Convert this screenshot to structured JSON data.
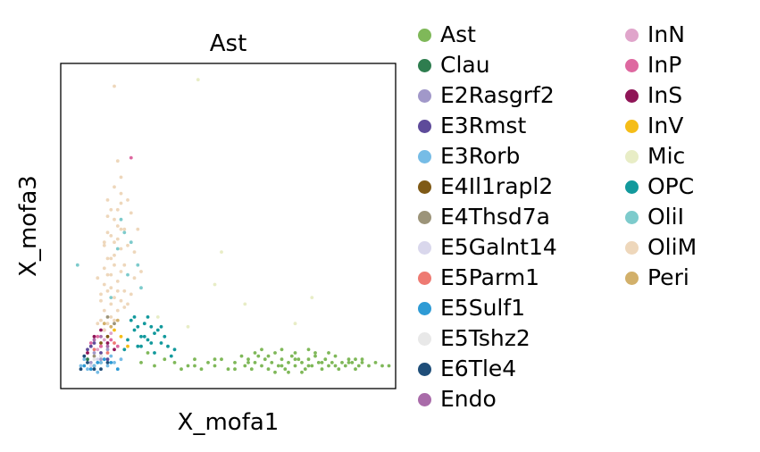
{
  "chart_data": {
    "type": "scatter",
    "title": "Ast",
    "xlabel": "X_mofa1",
    "ylabel": "X_mofa3",
    "xticks": false,
    "yticks": false,
    "grid": false,
    "legend_placement": "right",
    "xlim": [
      0,
      100
    ],
    "ylim": [
      0,
      100
    ],
    "series": [
      {
        "name": "Ast",
        "color": "#7fb859",
        "values": [
          [
            34,
            8
          ],
          [
            36,
            6
          ],
          [
            38,
            7
          ],
          [
            40,
            9
          ],
          [
            42,
            6
          ],
          [
            44,
            8
          ],
          [
            46,
            7
          ],
          [
            48,
            9
          ],
          [
            50,
            6
          ],
          [
            52,
            8
          ],
          [
            54,
            10
          ],
          [
            55,
            7
          ],
          [
            56,
            9
          ],
          [
            57,
            6
          ],
          [
            58,
            8
          ],
          [
            59,
            10
          ],
          [
            60,
            7
          ],
          [
            61,
            9
          ],
          [
            62,
            6
          ],
          [
            63,
            8
          ],
          [
            64,
            11
          ],
          [
            65,
            7
          ],
          [
            66,
            9
          ],
          [
            67,
            6
          ],
          [
            68,
            8
          ],
          [
            69,
            10
          ],
          [
            70,
            7
          ],
          [
            71,
            9
          ],
          [
            72,
            8
          ],
          [
            73,
            6
          ],
          [
            74,
            9
          ],
          [
            75,
            7
          ],
          [
            76,
            10
          ],
          [
            77,
            8
          ],
          [
            78,
            6
          ],
          [
            79,
            9
          ],
          [
            80,
            7
          ],
          [
            81,
            8
          ],
          [
            82,
            10
          ],
          [
            83,
            6
          ],
          [
            84,
            8
          ],
          [
            85,
            7
          ],
          [
            86,
            9
          ],
          [
            87,
            8
          ],
          [
            88,
            6
          ],
          [
            89,
            7
          ],
          [
            90,
            8
          ],
          [
            92,
            7
          ],
          [
            94,
            8
          ],
          [
            96,
            7
          ],
          [
            98,
            7
          ],
          [
            58,
            11
          ],
          [
            62,
            10
          ],
          [
            66,
            12
          ],
          [
            70,
            11
          ],
          [
            74,
            12
          ],
          [
            64,
            5
          ],
          [
            68,
            5
          ],
          [
            72,
            5
          ],
          [
            76,
            11
          ],
          [
            80,
            11
          ],
          [
            60,
            12
          ],
          [
            66,
            7
          ],
          [
            70,
            9
          ],
          [
            74,
            7
          ],
          [
            78,
            8
          ],
          [
            82,
            7
          ],
          [
            86,
            8
          ],
          [
            88,
            9
          ],
          [
            90,
            9
          ],
          [
            56,
            8
          ],
          [
            52,
            6
          ],
          [
            46,
            9
          ],
          [
            40,
            7
          ],
          [
            24,
            8
          ],
          [
            28,
            7
          ],
          [
            31,
            9
          ],
          [
            26,
            11
          ]
        ]
      },
      {
        "name": "Clau",
        "color": "#2e7d4f",
        "values": [
          [
            8,
            9
          ],
          [
            10,
            7
          ],
          [
            12,
            8
          ]
        ]
      },
      {
        "name": "E2Rasgrf2",
        "color": "#a198c9",
        "values": [
          [
            10,
            11
          ],
          [
            12,
            9
          ],
          [
            14,
            12
          ],
          [
            9,
            8
          ]
        ]
      },
      {
        "name": "E3Rmst",
        "color": "#5e4b9a",
        "values": [
          [
            8,
            12
          ],
          [
            10,
            14
          ],
          [
            12,
            11
          ],
          [
            14,
            9
          ],
          [
            9,
            13
          ]
        ]
      },
      {
        "name": "E3Rorb",
        "color": "#76bce6",
        "values": [
          [
            6,
            7
          ],
          [
            8,
            6
          ],
          [
            10,
            7
          ],
          [
            12,
            8
          ],
          [
            14,
            7
          ],
          [
            16,
            8
          ],
          [
            18,
            9
          ],
          [
            11,
            5
          ],
          [
            7,
            9
          ],
          [
            15,
            10
          ]
        ]
      },
      {
        "name": "E4Il1rapl2",
        "color": "#7f5a16",
        "values": [
          [
            12,
            14
          ],
          [
            14,
            16
          ]
        ]
      },
      {
        "name": "E4Thsd7a",
        "color": "#9c9479",
        "values": [
          [
            10,
            10
          ],
          [
            14,
            22
          ],
          [
            16,
            20
          ],
          [
            12,
            10
          ]
        ]
      },
      {
        "name": "E5Galnt14",
        "color": "#d9d7ec",
        "values": [
          [
            9,
            7
          ],
          [
            11,
            9
          ]
        ]
      },
      {
        "name": "E5Parm1",
        "color": "#ee7a72",
        "values": [
          [
            12,
            13
          ],
          [
            14,
            11
          ],
          [
            10,
            12
          ],
          [
            16,
            14
          ]
        ]
      },
      {
        "name": "E5Sulf1",
        "color": "#2e9bd5",
        "values": [
          [
            7,
            7
          ],
          [
            9,
            6
          ],
          [
            11,
            8
          ],
          [
            13,
            9
          ],
          [
            15,
            8
          ],
          [
            17,
            6
          ]
        ]
      },
      {
        "name": "E5Tshz2",
        "color": "#e8e8e8",
        "values": [
          [
            10,
            9
          ],
          [
            12,
            10
          ]
        ]
      },
      {
        "name": "E6Tle4",
        "color": "#1f4e79",
        "values": [
          [
            6,
            6
          ],
          [
            8,
            8
          ],
          [
            10,
            6
          ],
          [
            12,
            6
          ],
          [
            14,
            8
          ],
          [
            7,
            10
          ]
        ]
      },
      {
        "name": "Endo",
        "color": "#a96ba9",
        "values": [
          [
            10,
            15
          ],
          [
            12,
            16
          ],
          [
            14,
            13
          ]
        ]
      },
      {
        "name": "InN",
        "color": "#e0a5cb",
        "values": [
          [
            11,
            12
          ],
          [
            13,
            15
          ],
          [
            15,
            17
          ]
        ]
      },
      {
        "name": "InP",
        "color": "#de68a0",
        "values": [
          [
            9,
            14
          ],
          [
            11,
            16
          ],
          [
            13,
            18
          ],
          [
            15,
            15
          ],
          [
            17,
            13
          ],
          [
            12,
            13
          ],
          [
            21,
            71
          ]
        ]
      },
      {
        "name": "InS",
        "color": "#8f1557",
        "values": [
          [
            10,
            16
          ],
          [
            12,
            18
          ],
          [
            14,
            14
          ],
          [
            16,
            12
          ],
          [
            8,
            11
          ]
        ]
      },
      {
        "name": "InV",
        "color": "#f5bd18",
        "values": [
          [
            16,
            18
          ],
          [
            18,
            16
          ],
          [
            20,
            13
          ]
        ]
      },
      {
        "name": "Mic",
        "color": "#e8edc6",
        "values": [
          [
            41,
            95
          ],
          [
            55,
            26
          ],
          [
            70,
            20
          ],
          [
            75,
            28
          ],
          [
            46,
            32
          ],
          [
            38,
            19
          ],
          [
            29,
            22
          ],
          [
            48,
            42
          ]
        ]
      },
      {
        "name": "OPC",
        "color": "#12999c",
        "values": [
          [
            22,
            18
          ],
          [
            24,
            16
          ],
          [
            26,
            15
          ],
          [
            28,
            17
          ],
          [
            30,
            14
          ],
          [
            25,
            20
          ],
          [
            27,
            19
          ],
          [
            29,
            18
          ],
          [
            31,
            16
          ],
          [
            20,
            15
          ],
          [
            23,
            13
          ],
          [
            32,
            13
          ],
          [
            22,
            22
          ],
          [
            24,
            13
          ],
          [
            33,
            10
          ],
          [
            26,
            22
          ],
          [
            19,
            12
          ],
          [
            30,
            19
          ],
          [
            21,
            21
          ],
          [
            28,
            11
          ],
          [
            34,
            12
          ],
          [
            25,
            16
          ],
          [
            27,
            14
          ],
          [
            23,
            19
          ]
        ]
      },
      {
        "name": "OliI",
        "color": "#7dcbcc",
        "values": [
          [
            5,
            38
          ],
          [
            17,
            43
          ],
          [
            19,
            48
          ],
          [
            21,
            45
          ],
          [
            23,
            38
          ],
          [
            18,
            52
          ],
          [
            20,
            35
          ],
          [
            24,
            31
          ],
          [
            15,
            28
          ]
        ]
      },
      {
        "name": "OliM",
        "color": "#eed7bb",
        "values": [
          [
            16,
            93
          ],
          [
            17,
            70
          ],
          [
            18,
            65
          ],
          [
            16,
            62
          ],
          [
            20,
            58
          ],
          [
            15,
            55
          ],
          [
            14,
            53
          ],
          [
            17,
            50
          ],
          [
            19,
            49
          ],
          [
            15,
            47
          ],
          [
            16,
            45
          ],
          [
            18,
            43
          ],
          [
            13,
            44
          ],
          [
            14,
            40
          ],
          [
            16,
            38
          ],
          [
            18,
            36
          ],
          [
            15,
            35
          ],
          [
            17,
            33
          ],
          [
            13,
            32
          ],
          [
            14,
            30
          ],
          [
            16,
            28
          ],
          [
            18,
            27
          ],
          [
            15,
            26
          ],
          [
            17,
            24
          ],
          [
            13,
            24
          ],
          [
            15,
            22
          ],
          [
            12,
            21
          ],
          [
            14,
            20
          ],
          [
            16,
            21
          ],
          [
            11,
            20
          ],
          [
            13,
            18
          ],
          [
            17,
            30
          ],
          [
            19,
            38
          ],
          [
            12,
            27
          ],
          [
            20,
            44
          ],
          [
            21,
            54
          ],
          [
            23,
            49
          ],
          [
            18,
            57
          ],
          [
            22,
            42
          ],
          [
            24,
            36
          ],
          [
            13,
            37
          ],
          [
            11,
            34
          ],
          [
            19,
            25
          ],
          [
            15,
            40
          ],
          [
            16,
            52
          ],
          [
            18,
            60
          ],
          [
            14,
            58
          ],
          [
            17,
            46
          ],
          [
            20,
            26
          ],
          [
            12,
            29
          ],
          [
            22,
            34
          ],
          [
            14,
            48
          ],
          [
            19,
            30
          ],
          [
            15,
            31
          ],
          [
            21,
            29
          ],
          [
            13,
            45
          ],
          [
            16,
            41
          ],
          [
            18,
            49
          ],
          [
            17,
            55
          ],
          [
            14,
            35
          ]
        ]
      },
      {
        "name": "Peri",
        "color": "#d2b06a",
        "values": [
          [
            13,
            20
          ],
          [
            15,
            19
          ],
          [
            17,
            21
          ]
        ]
      }
    ]
  }
}
